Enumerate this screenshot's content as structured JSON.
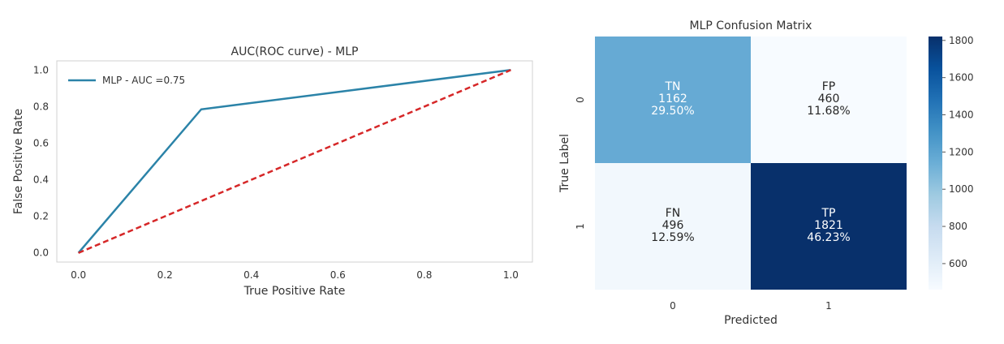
{
  "chart_data": [
    {
      "type": "line",
      "title": "AUC(ROC curve) - MLP",
      "xlabel": "True Positive Rate",
      "ylabel": "False Positive Rate",
      "xlim": [
        -0.05,
        1.05
      ],
      "ylim": [
        -0.05,
        1.05
      ],
      "xticks": [
        "0.0",
        "0.2",
        "0.4",
        "0.6",
        "0.8",
        "1.0"
      ],
      "yticks": [
        "0.0",
        "0.2",
        "0.4",
        "0.6",
        "0.8",
        "1.0"
      ],
      "grid": false,
      "legend_position": "top-left",
      "series": [
        {
          "name": "MLP - AUC =0.75",
          "color": "#2b83a8",
          "style": "solid",
          "x": [
            0.0,
            0.284,
            1.0
          ],
          "y": [
            0.0,
            0.785,
            1.0
          ]
        },
        {
          "color": "#d62728",
          "style": "dashed",
          "x": [
            0.0,
            1.0
          ],
          "y": [
            0.0,
            1.0
          ]
        }
      ]
    },
    {
      "type": "heatmap",
      "title": "MLP Confusion Matrix",
      "xlabel": "Predicted",
      "ylabel": "True Label",
      "x_categories": [
        "0",
        "1"
      ],
      "y_categories": [
        "0",
        "1"
      ],
      "values": [
        [
          1162,
          460
        ],
        [
          496,
          1821
        ]
      ],
      "cell_labels": [
        [
          {
            "name": "TN",
            "count": "1162",
            "percent": "29.50%"
          },
          {
            "name": "FP",
            "count": "460",
            "percent": "11.68%"
          }
        ],
        [
          {
            "name": "FN",
            "count": "496",
            "percent": "12.59%"
          },
          {
            "name": "TP",
            "count": "1821",
            "percent": "46.23%"
          }
        ]
      ],
      "colormap": "Blues",
      "colorbar_range": [
        460,
        1821
      ],
      "colorbar_ticks": [
        "600",
        "800",
        "1000",
        "1200",
        "1400",
        "1600",
        "1800"
      ]
    }
  ]
}
